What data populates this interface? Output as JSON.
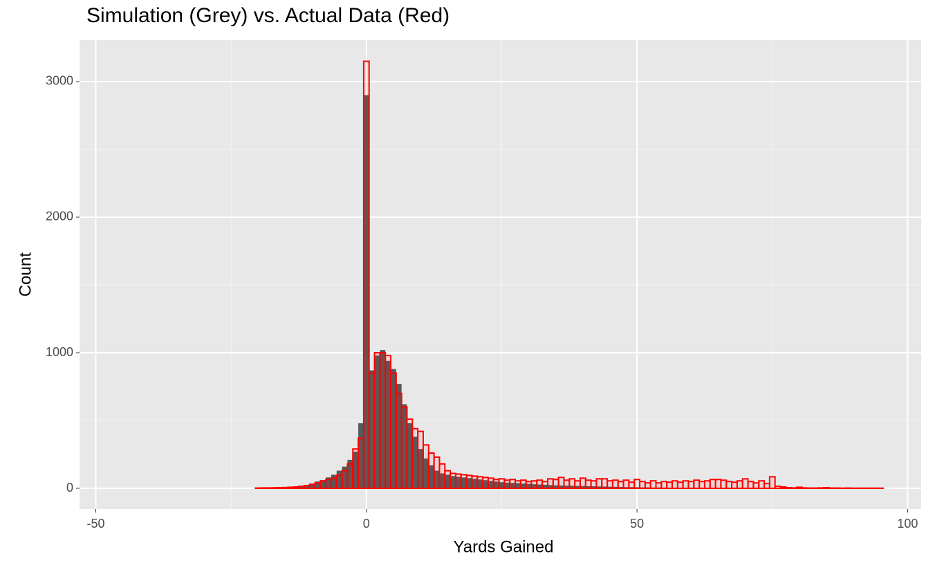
{
  "chart_data": {
    "type": "histogram",
    "title": "Simulation (Grey) vs. Actual Data (Red)",
    "x_label": "Yards Gained",
    "y_label": "Count",
    "bins": [
      -44.5,
      -43.5,
      -42.5,
      -41.5,
      -40.5,
      -39.5,
      -38.5,
      -37.5,
      -36.5,
      -35.5,
      -34.5,
      -33.5,
      -32.5,
      -31.5,
      -30.5,
      -29.5,
      -28.5,
      -27.5,
      -26.5,
      -25.5,
      -24.5,
      -23.5,
      -22.5,
      -21.5,
      -20.5,
      -19.5,
      -18.5,
      -17.5,
      -16.5,
      -15.5,
      -14.5,
      -13.5,
      -12.5,
      -11.5,
      -10.5,
      -9.5,
      -8.5,
      -7.5,
      -6.5,
      -5.5,
      -4.5,
      -3.5,
      -2.5,
      -1.5,
      -0.5,
      0.5,
      1.5,
      2.5,
      3.5,
      4.5,
      5.5,
      6.5,
      7.5,
      8.5,
      9.5,
      10.5,
      11.5,
      12.5,
      13.5,
      14.5,
      15.5,
      16.5,
      17.5,
      18.5,
      19.5,
      20.5,
      21.5,
      22.5,
      23.5,
      24.5,
      25.5,
      26.5,
      27.5,
      28.5,
      29.5,
      30.5,
      31.5,
      32.5,
      33.5,
      34.5,
      35.5,
      36.5,
      37.5,
      38.5,
      39.5,
      40.5,
      41.5,
      42.5,
      43.5,
      44.5,
      45.5,
      46.5,
      47.5,
      48.5,
      49.5,
      50.5,
      51.5,
      52.5,
      53.5,
      54.5,
      55.5,
      56.5,
      57.5,
      58.5,
      59.5,
      60.5,
      61.5,
      62.5,
      63.5,
      64.5,
      65.5,
      66.5,
      67.5,
      68.5,
      69.5,
      70.5,
      71.5,
      72.5,
      73.5,
      74.5,
      75.5,
      76.5,
      77.5,
      78.5,
      79.5,
      80.5,
      81.5,
      82.5,
      83.5,
      84.5,
      85.5,
      86.5,
      87.5,
      88.5,
      89.5,
      90.5,
      91.5,
      92.5,
      93.5,
      94.5,
      95.5
    ],
    "series": [
      {
        "color": "#595959",
        "style": "filled",
        "values": [
          0,
          0,
          0,
          0,
          0,
          0,
          0,
          0,
          0,
          0,
          0,
          0,
          0,
          0,
          0,
          0,
          0,
          0,
          0,
          0,
          0,
          0,
          0,
          0,
          2,
          2,
          3,
          3,
          4,
          5,
          6,
          8,
          12,
          18,
          28,
          50,
          60,
          80,
          100,
          130,
          160,
          210,
          270,
          480,
          2900,
          870,
          980,
          1020,
          940,
          880,
          770,
          620,
          480,
          380,
          290,
          220,
          170,
          130,
          110,
          100,
          90,
          85,
          80,
          75,
          70,
          65,
          60,
          55,
          50,
          45,
          42,
          40,
          38,
          35,
          33,
          30,
          28,
          26,
          24,
          22,
          21,
          20,
          19,
          18,
          17,
          16,
          15,
          14,
          13,
          12,
          11,
          10,
          9,
          9,
          8,
          7,
          7,
          6,
          6,
          5,
          5,
          4,
          4,
          4,
          3,
          3,
          3,
          2,
          2,
          2,
          2,
          2,
          1,
          1,
          1,
          1,
          1,
          1,
          1,
          1,
          0,
          0,
          0,
          0,
          0,
          0,
          0,
          0,
          0,
          0,
          0,
          0,
          0,
          0,
          0,
          0,
          0,
          0,
          0,
          0
        ]
      },
      {
        "color": "#ff0000",
        "style": "outline",
        "values": [
          0,
          0,
          0,
          0,
          0,
          0,
          0,
          0,
          0,
          0,
          0,
          0,
          0,
          0,
          0,
          0,
          0,
          0,
          0,
          0,
          0,
          0,
          0,
          0,
          2,
          3,
          3,
          4,
          5,
          6,
          8,
          10,
          15,
          20,
          30,
          40,
          55,
          65,
          75,
          95,
          130,
          180,
          290,
          370,
          3150,
          850,
          1000,
          1000,
          980,
          850,
          700,
          600,
          510,
          440,
          420,
          320,
          260,
          230,
          180,
          130,
          110,
          105,
          100,
          95,
          90,
          85,
          80,
          75,
          65,
          70,
          60,
          65,
          55,
          60,
          50,
          55,
          60,
          50,
          70,
          65,
          80,
          60,
          70,
          55,
          75,
          60,
          55,
          70,
          70,
          55,
          60,
          50,
          60,
          45,
          65,
          50,
          40,
          55,
          40,
          50,
          45,
          55,
          45,
          55,
          50,
          60,
          50,
          55,
          65,
          65,
          60,
          50,
          45,
          55,
          70,
          50,
          40,
          55,
          35,
          85,
          15,
          10,
          5,
          3,
          8,
          3,
          2,
          2,
          3,
          5,
          2,
          2,
          1,
          2,
          1,
          1,
          1,
          1,
          1,
          1
        ]
      }
    ],
    "xlim": [
      -53,
      102.5
    ],
    "ylim": [
      -153,
      3306
    ],
    "xticks": [
      -50,
      0,
      50,
      100
    ],
    "yticks": [
      0,
      1000,
      2000,
      3000
    ],
    "grid": true
  }
}
